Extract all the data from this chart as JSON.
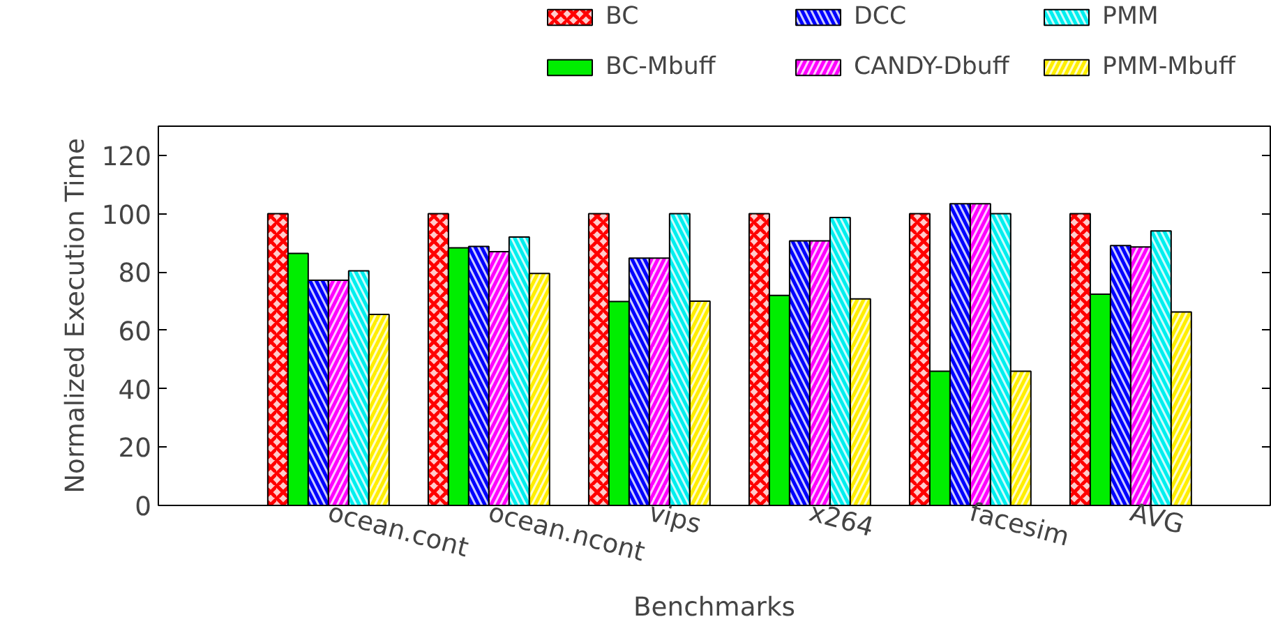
{
  "chart_data": {
    "type": "bar",
    "xlabel": "Benchmarks",
    "ylabel": "Normalized Execution Time",
    "categories": [
      "ocean.cont",
      "ocean.ncont",
      "vips",
      "x264",
      "facesim",
      "AVG"
    ],
    "series": [
      {
        "name": "BC",
        "color": "#ff0000",
        "values": [
          100,
          100,
          100,
          100,
          100,
          100
        ]
      },
      {
        "name": "BC-Mbuff",
        "color": "#00ee00",
        "values": [
          86.4,
          88.3,
          69.9,
          72,
          46,
          72.4
        ]
      },
      {
        "name": "DCC",
        "color": "#0000ff",
        "values": [
          77.2,
          88.8,
          84.8,
          90.7,
          103.4,
          89.1
        ]
      },
      {
        "name": "CANDY-Dbuff",
        "color": "#ff00ff",
        "values": [
          77.2,
          87,
          84.8,
          90.7,
          103.4,
          88.6
        ]
      },
      {
        "name": "PMM",
        "color": "#00eeee",
        "values": [
          80.4,
          92,
          100,
          98.7,
          100,
          94.1
        ]
      },
      {
        "name": "PMM-Mbuff",
        "color": "#ffee00",
        "values": [
          65.5,
          79.5,
          70,
          70.8,
          46,
          66.3
        ]
      }
    ],
    "ylim": [
      0,
      130
    ],
    "yticks": [
      0,
      20,
      40,
      60,
      80,
      100,
      120
    ],
    "grid": false,
    "legend": "top right"
  }
}
